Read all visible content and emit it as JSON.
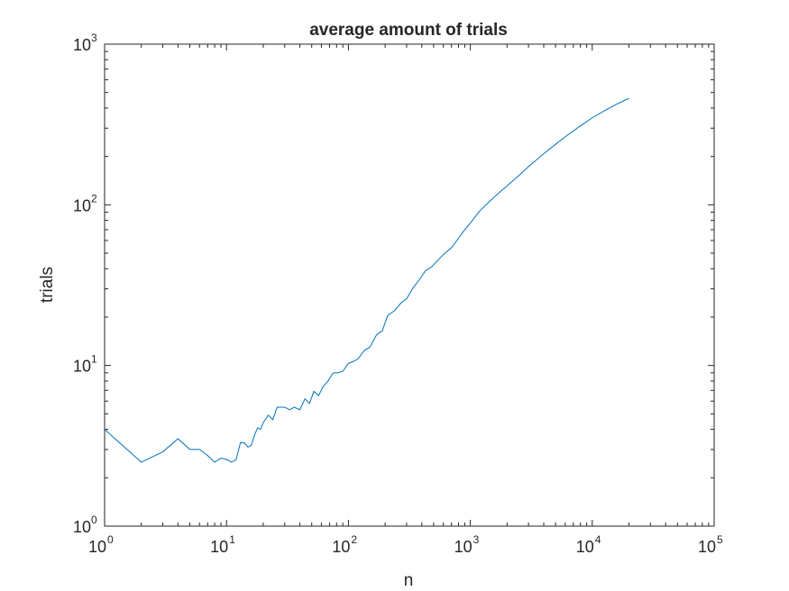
{
  "chart_data": {
    "type": "line",
    "title": "average amount of trials",
    "xlabel": "n",
    "ylabel": "trials",
    "xscale": "log",
    "yscale": "log",
    "xlim": [
      1,
      100000
    ],
    "ylim": [
      1,
      1000
    ],
    "grid": false,
    "box": true,
    "line_color": "#0072BD",
    "x_ticks": [
      {
        "base": "10",
        "exp": "0",
        "value": 1
      },
      {
        "base": "10",
        "exp": "1",
        "value": 10
      },
      {
        "base": "10",
        "exp": "2",
        "value": 100
      },
      {
        "base": "10",
        "exp": "3",
        "value": 1000
      },
      {
        "base": "10",
        "exp": "4",
        "value": 10000
      },
      {
        "base": "10",
        "exp": "5",
        "value": 100000
      }
    ],
    "y_ticks": [
      {
        "base": "10",
        "exp": "0",
        "value": 1
      },
      {
        "base": "10",
        "exp": "1",
        "value": 10
      },
      {
        "base": "10",
        "exp": "2",
        "value": 100
      },
      {
        "base": "10",
        "exp": "3",
        "value": 1000
      }
    ],
    "series": [
      {
        "x": [
          1,
          2,
          3,
          4,
          5,
          6,
          7,
          8,
          9,
          10,
          11,
          12,
          13,
          14,
          15,
          16,
          17,
          18,
          19,
          20,
          22,
          24,
          26,
          28,
          30,
          33,
          36,
          40,
          44,
          48,
          52,
          57,
          62,
          68,
          75,
          82,
          90,
          100,
          110,
          120,
          135,
          150,
          170,
          190,
          210,
          240,
          270,
          300,
          340,
          380,
          430,
          480,
          540,
          600,
          700,
          800,
          900,
          1000,
          1200,
          1400,
          1700,
          2000,
          2500,
          3000,
          4000,
          5000,
          6000,
          8000,
          10000,
          13000,
          16000,
          20000
        ],
        "y": [
          4.0,
          2.5,
          2.9,
          3.5,
          3.0,
          3.0,
          2.75,
          2.5,
          2.65,
          2.6,
          2.5,
          2.6,
          3.3,
          3.3,
          3.1,
          3.2,
          3.7,
          4.1,
          4.0,
          4.4,
          4.9,
          4.6,
          5.5,
          5.5,
          5.5,
          5.3,
          5.5,
          5.3,
          6.2,
          5.8,
          6.9,
          6.5,
          7.4,
          8.0,
          9.0,
          9.0,
          9.2,
          10.3,
          10.6,
          11.0,
          12.4,
          13.0,
          15.5,
          16.5,
          20.5,
          22.0,
          24.5,
          26.0,
          30.5,
          34.0,
          39.0,
          41.0,
          45.0,
          49.0,
          54.0,
          62.0,
          70.0,
          77.0,
          92.0,
          103.0,
          118.0,
          131.0,
          152.0,
          173.0,
          208.0,
          238.0,
          265.0,
          310.0,
          348.0,
          390.0,
          425.0,
          460.0
        ]
      }
    ]
  }
}
